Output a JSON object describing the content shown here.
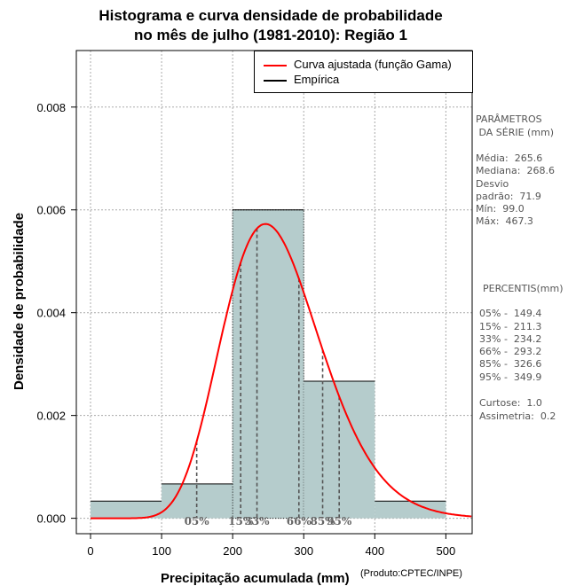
{
  "chart_data": {
    "type": "bar",
    "title_line1": "Histograma e curva densidade de probabilidade",
    "title_line2": "no mês de julho (1981-2010): Região 1",
    "xlabel": "Precipitação acumulada (mm)",
    "ylabel": "Densidade de probabilidade",
    "xlim": [
      -20,
      537
    ],
    "ylim": [
      -0.0003,
      0.0091
    ],
    "x_ticks": [
      0,
      100,
      200,
      300,
      400,
      500
    ],
    "x_tick_labels": [
      "0",
      "100",
      "200",
      "300",
      "400",
      "500"
    ],
    "y_ticks": [
      0.0,
      0.002,
      0.004,
      0.006,
      0.008
    ],
    "y_tick_labels": [
      "0.000",
      "0.002",
      "0.004",
      "0.006",
      "0.008"
    ],
    "grid": true,
    "histogram": {
      "bins": [
        [
          0,
          100
        ],
        [
          100,
          200
        ],
        [
          200,
          300
        ],
        [
          300,
          400
        ],
        [
          400,
          500
        ]
      ],
      "density": [
        0.000333,
        0.000667,
        0.006,
        0.002667,
        0.000333
      ],
      "color": "#b5cccc"
    },
    "gamma_fit": {
      "mean": 265.6,
      "sd": 71.9,
      "color": "#ff0000"
    },
    "legend": {
      "position": "top-right",
      "entries": [
        {
          "label": "Curva ajustada (função Gama)",
          "color": "#ff0000"
        },
        {
          "label": "Empírica",
          "color": "#000000"
        }
      ]
    },
    "percentile_lines": [
      {
        "label": "05%",
        "x": 149.4
      },
      {
        "label": "15%",
        "x": 211.3
      },
      {
        "label": "33%",
        "x": 234.2
      },
      {
        "label": "66%",
        "x": 293.2
      },
      {
        "label": "85%",
        "x": 326.6
      },
      {
        "label": "95%",
        "x": 349.9
      }
    ]
  },
  "side_panel": {
    "params_header_1": "PARÂMETROS",
    "params_header_2": " DA SÉRIE (mm)",
    "media": "Média:  265.6",
    "mediana": "Mediana:  268.6",
    "desvio_1": "Desvio",
    "desvio_2": "padrão:  71.9",
    "min": "Mín:  99.0",
    "max": "Máx:  467.3",
    "percentis_header": "PERCENTIS(mm)",
    "p05": "05% -  149.4",
    "p15": "15% -  211.3",
    "p33": "33% -  234.2",
    "p66": "66% -  293.2",
    "p85": "85% -  326.6",
    "p95": "95% -  349.9",
    "curtose": "Curtose:  1.0",
    "assimetria": "Assimetria:  0.2"
  },
  "credit": "(Produto:CPTEC/INPE)"
}
